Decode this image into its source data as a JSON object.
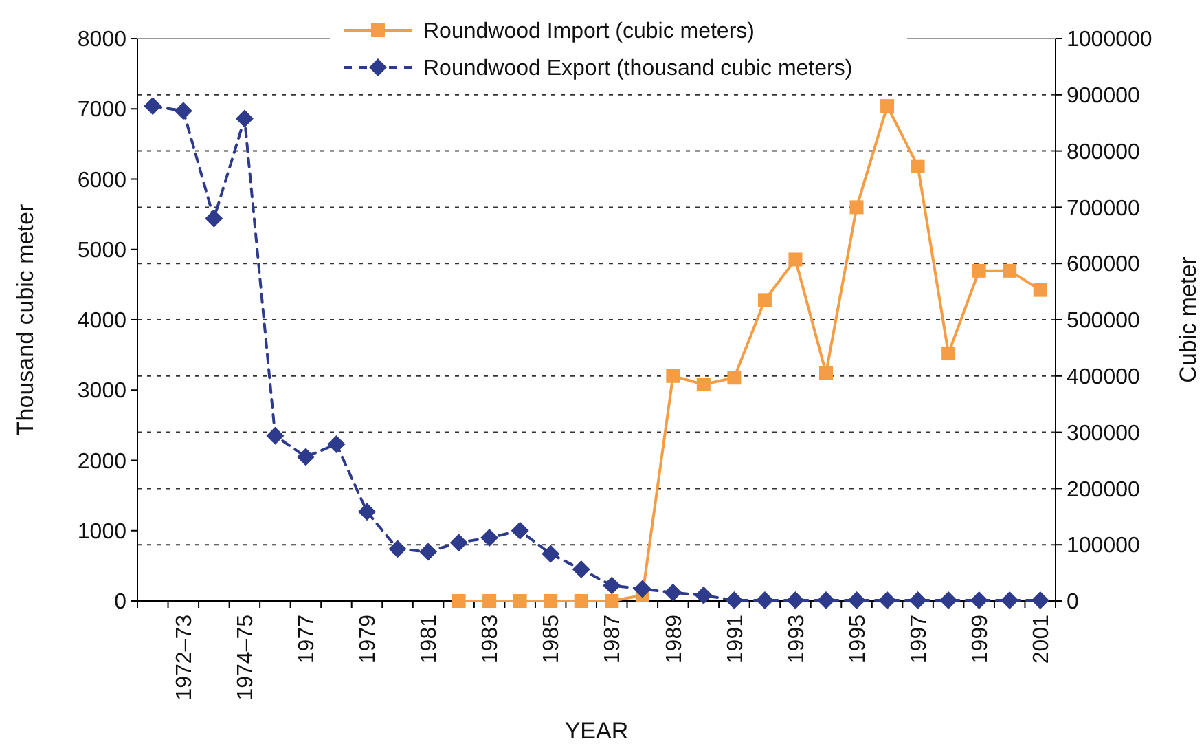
{
  "chart_data": {
    "type": "line",
    "xlabel": "YEAR",
    "ylabel": "Thousand cubic meter",
    "y2label": "Cubic meter",
    "categories": [
      null,
      "1972–73",
      null,
      "1974–75",
      null,
      "1977",
      null,
      "1979",
      null,
      "1981",
      null,
      "1983",
      null,
      "1985",
      null,
      "1987",
      null,
      "1989",
      null,
      "1991",
      null,
      "1993",
      null,
      "1995",
      null,
      "1997",
      null,
      "1999",
      null,
      "2001"
    ],
    "series": [
      {
        "name": "Roundwood Import (cubic meters)",
        "color": "#f59d45",
        "axis": "y2",
        "marker": "square",
        "line_style": "solid",
        "values": [
          null,
          null,
          null,
          null,
          null,
          null,
          null,
          null,
          null,
          null,
          0,
          0,
          0,
          0,
          0,
          0,
          10000,
          400000,
          385000,
          397000,
          535000,
          607000,
          405000,
          700000,
          880000,
          773000,
          440000,
          587000,
          587000,
          553000
        ]
      },
      {
        "name": "Roundwood Export (thousand cubic meters)",
        "color": "#2e3a8c",
        "axis": "y",
        "marker": "diamond",
        "line_style": "dashed",
        "values": [
          7040,
          6970,
          5440,
          6860,
          2350,
          2050,
          2230,
          1270,
          740,
          700,
          830,
          900,
          1000,
          670,
          450,
          220,
          170,
          120,
          80,
          10,
          10,
          10,
          10,
          10,
          10,
          10,
          10,
          10,
          10,
          10
        ]
      }
    ],
    "ylim": [
      0,
      8000
    ],
    "yticks": [
      0,
      1000,
      2000,
      3000,
      4000,
      5000,
      6000,
      7000,
      8000
    ],
    "y2lim": [
      0,
      1000000
    ],
    "y2ticks": [
      0,
      100000,
      200000,
      300000,
      400000,
      500000,
      600000,
      700000,
      800000,
      900000,
      1000000
    ],
    "grid": "y2",
    "legend": "top"
  }
}
